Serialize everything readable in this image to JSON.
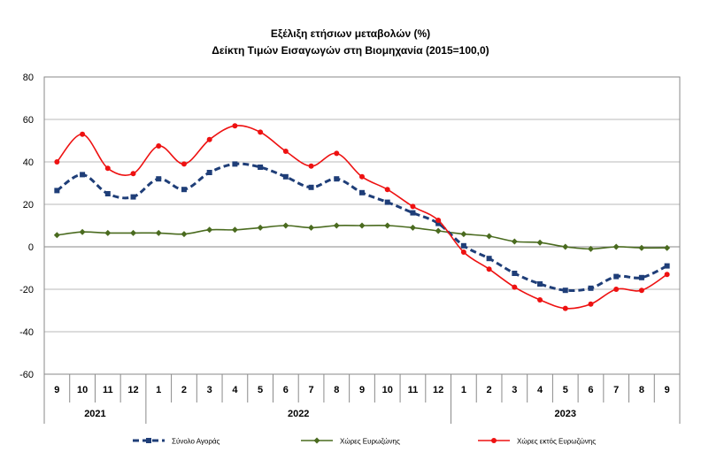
{
  "chart_data": {
    "type": "line",
    "title": "Εξέλιξη ετήσιων μεταβολών (%)",
    "subtitle": "Δείκτη Τιμών Εισαγωγών στη Βιομηχανία (2015=100,0)",
    "xlabel": "",
    "ylabel": "",
    "ylim": [
      -60,
      80
    ],
    "yticks": [
      -60,
      -40,
      -20,
      0,
      20,
      40,
      60,
      80
    ],
    "grid": true,
    "legend_position": "bottom",
    "categories": [
      "9",
      "10",
      "11",
      "12",
      "1",
      "2",
      "3",
      "4",
      "5",
      "6",
      "7",
      "8",
      "9",
      "10",
      "11",
      "12",
      "1",
      "2",
      "3",
      "4",
      "5",
      "6",
      "7",
      "8",
      "9"
    ],
    "year_groups": [
      {
        "label": "2021",
        "start": 0,
        "end": 3
      },
      {
        "label": "2022",
        "start": 4,
        "end": 15
      },
      {
        "label": "2023",
        "start": 16,
        "end": 24
      }
    ],
    "series": [
      {
        "name": "Σύνολο Αγοράς",
        "color": "#1f3e78",
        "style": "dashed",
        "marker": "square",
        "values": [
          26.5,
          34,
          25,
          23.5,
          32,
          27,
          35,
          39,
          37.5,
          33,
          28,
          32,
          25.5,
          21,
          16,
          11,
          0.5,
          -5.5,
          -12.5,
          -17.5,
          -20.5,
          -19.5,
          -14,
          -14.5,
          -9
        ]
      },
      {
        "name": "Χώρες Ευρωζώνης",
        "color": "#4a6b1f",
        "style": "solid",
        "marker": "diamond",
        "values": [
          5.5,
          7,
          6.5,
          6.5,
          6.5,
          6,
          8,
          8,
          9,
          10,
          9,
          10,
          10,
          10,
          9,
          7.5,
          6,
          5,
          2.5,
          2,
          0,
          -1,
          0,
          -0.5,
          -0.5
        ]
      },
      {
        "name": "Χώρες εκτός Ευρωζώνης",
        "color": "#ee1111",
        "style": "solid",
        "marker": "circle",
        "values": [
          40,
          53,
          37,
          34.5,
          47.5,
          39,
          50.5,
          57,
          54,
          45,
          38,
          44,
          33,
          27,
          19,
          12.5,
          -2.5,
          -10.5,
          -19,
          -25,
          -29,
          -27,
          -20,
          -20.5,
          -13
        ]
      }
    ]
  }
}
